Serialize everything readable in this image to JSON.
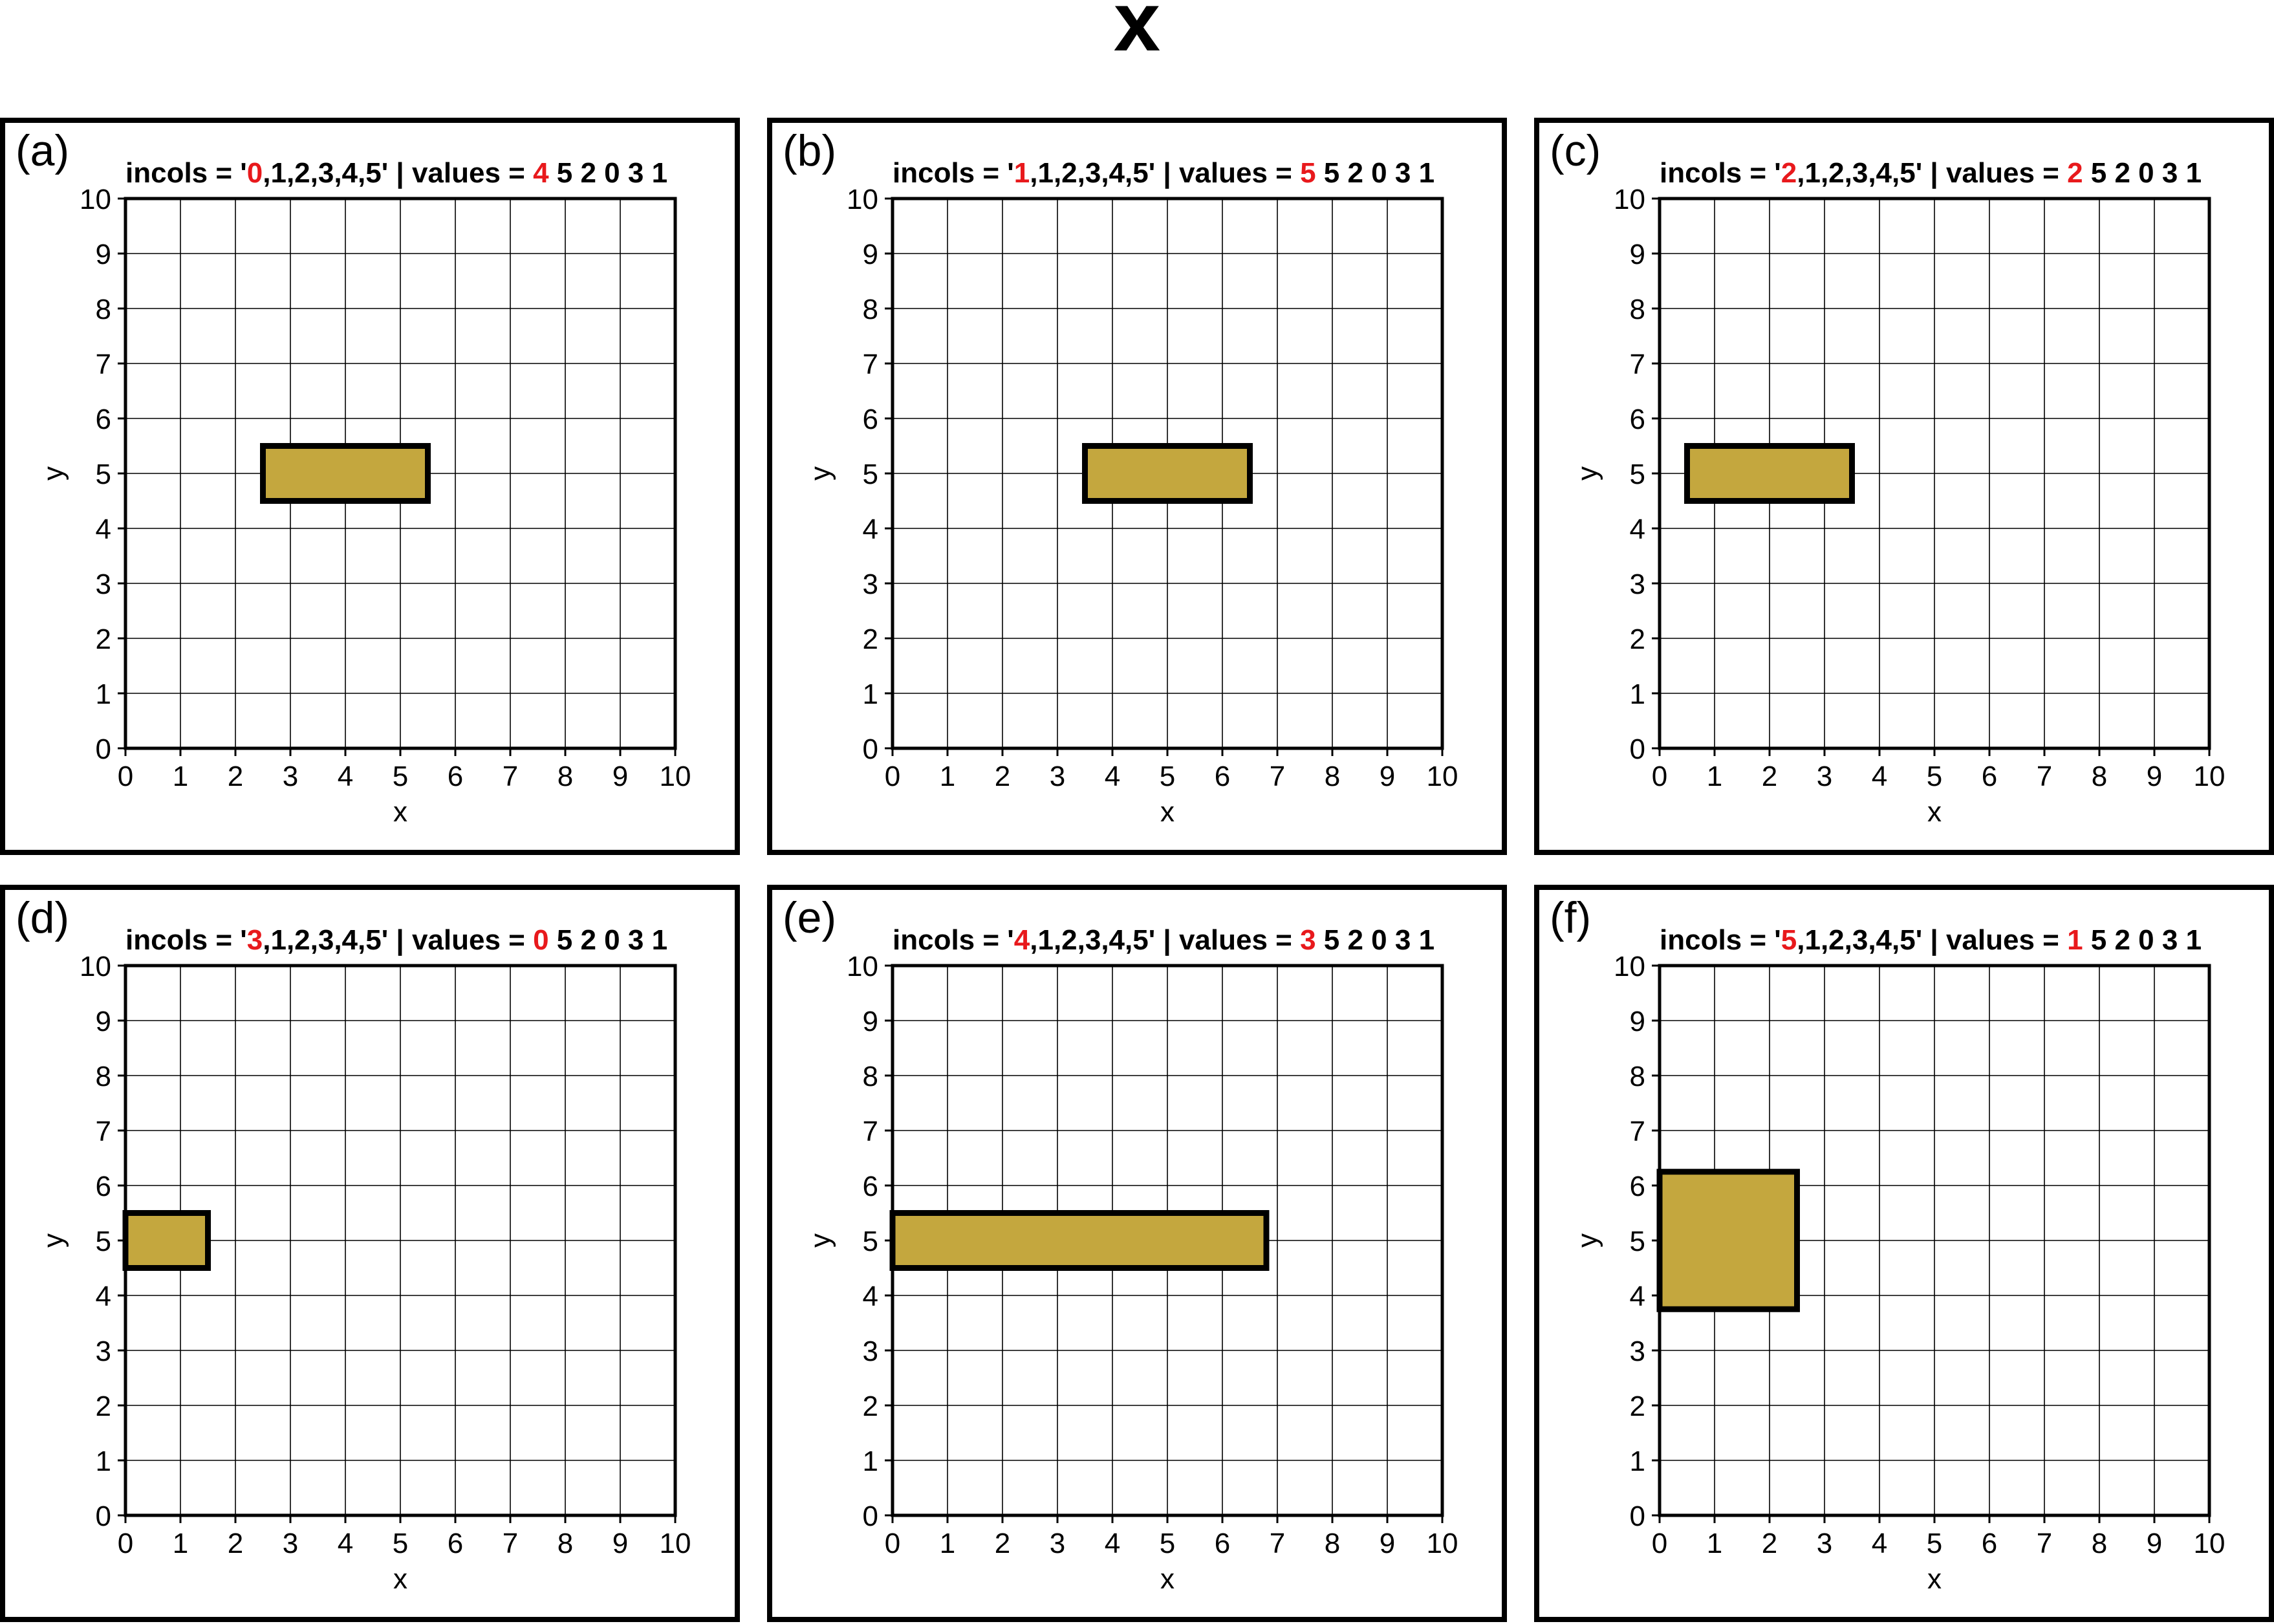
{
  "title": "x",
  "colors": {
    "fill": "#c4a73e",
    "edge": "#000000",
    "highlight": "#e8191c",
    "grid": "#000000",
    "text": "#000000",
    "background": "#ffffff"
  },
  "chart_data": [
    {
      "type": "bar",
      "orientation": "horizontal",
      "panel_label": "(a)",
      "title_parts": [
        {
          "text": "incols = '",
          "highlight": false
        },
        {
          "text": "0",
          "highlight": true
        },
        {
          "text": ",1,2,3,4,5' | values = ",
          "highlight": false
        },
        {
          "text": "4",
          "highlight": true
        },
        {
          "text": " 5 2 0 3 1",
          "highlight": false
        }
      ],
      "xlabel": "x",
      "ylabel": "y",
      "xlim": [
        0,
        10
      ],
      "ylim": [
        0,
        10
      ],
      "xticks": [
        "0",
        "1",
        "2",
        "3",
        "4",
        "5",
        "6",
        "7",
        "8",
        "9",
        "10"
      ],
      "yticks": [
        "0",
        "1",
        "2",
        "3",
        "4",
        "5",
        "6",
        "7",
        "8",
        "9",
        "10"
      ],
      "grid": true,
      "bars": [
        {
          "x0": 2.5,
          "x1": 5.5,
          "y0": 4.5,
          "y1": 5.5
        }
      ]
    },
    {
      "type": "bar",
      "orientation": "horizontal",
      "panel_label": "(b)",
      "title_parts": [
        {
          "text": "incols = '",
          "highlight": false
        },
        {
          "text": "1",
          "highlight": true
        },
        {
          "text": ",1,2,3,4,5' | values = ",
          "highlight": false
        },
        {
          "text": "5",
          "highlight": true
        },
        {
          "text": " 5 2 0 3 1",
          "highlight": false
        }
      ],
      "xlabel": "x",
      "ylabel": "y",
      "xlim": [
        0,
        10
      ],
      "ylim": [
        0,
        10
      ],
      "xticks": [
        "0",
        "1",
        "2",
        "3",
        "4",
        "5",
        "6",
        "7",
        "8",
        "9",
        "10"
      ],
      "yticks": [
        "0",
        "1",
        "2",
        "3",
        "4",
        "5",
        "6",
        "7",
        "8",
        "9",
        "10"
      ],
      "grid": true,
      "bars": [
        {
          "x0": 3.5,
          "x1": 6.5,
          "y0": 4.5,
          "y1": 5.5
        }
      ]
    },
    {
      "type": "bar",
      "orientation": "horizontal",
      "panel_label": "(c)",
      "title_parts": [
        {
          "text": "incols = '",
          "highlight": false
        },
        {
          "text": "2",
          "highlight": true
        },
        {
          "text": ",1,2,3,4,5' | values = ",
          "highlight": false
        },
        {
          "text": "2",
          "highlight": true
        },
        {
          "text": " 5 2 0 3 1",
          "highlight": false
        }
      ],
      "xlabel": "x",
      "ylabel": "y",
      "xlim": [
        0,
        10
      ],
      "ylim": [
        0,
        10
      ],
      "xticks": [
        "0",
        "1",
        "2",
        "3",
        "4",
        "5",
        "6",
        "7",
        "8",
        "9",
        "10"
      ],
      "yticks": [
        "0",
        "1",
        "2",
        "3",
        "4",
        "5",
        "6",
        "7",
        "8",
        "9",
        "10"
      ],
      "grid": true,
      "bars": [
        {
          "x0": 0.5,
          "x1": 3.5,
          "y0": 4.5,
          "y1": 5.5
        }
      ]
    },
    {
      "type": "bar",
      "orientation": "horizontal",
      "panel_label": "(d)",
      "title_parts": [
        {
          "text": "incols = '",
          "highlight": false
        },
        {
          "text": "3",
          "highlight": true
        },
        {
          "text": ",1,2,3,4,5' | values = ",
          "highlight": false
        },
        {
          "text": "0",
          "highlight": true
        },
        {
          "text": " 5 2 0 3 1",
          "highlight": false
        }
      ],
      "xlabel": "x",
      "ylabel": "y",
      "xlim": [
        0,
        10
      ],
      "ylim": [
        0,
        10
      ],
      "xticks": [
        "0",
        "1",
        "2",
        "3",
        "4",
        "5",
        "6",
        "7",
        "8",
        "9",
        "10"
      ],
      "yticks": [
        "0",
        "1",
        "2",
        "3",
        "4",
        "5",
        "6",
        "7",
        "8",
        "9",
        "10"
      ],
      "grid": true,
      "bars": [
        {
          "x0": 0,
          "x1": 1.5,
          "y0": 4.5,
          "y1": 5.5
        }
      ]
    },
    {
      "type": "bar",
      "orientation": "horizontal",
      "panel_label": "(e)",
      "title_parts": [
        {
          "text": "incols = '",
          "highlight": false
        },
        {
          "text": "4",
          "highlight": true
        },
        {
          "text": ",1,2,3,4,5' | values = ",
          "highlight": false
        },
        {
          "text": "3",
          "highlight": true
        },
        {
          "text": " 5 2 0 3 1",
          "highlight": false
        }
      ],
      "xlabel": "x",
      "ylabel": "y",
      "xlim": [
        0,
        10
      ],
      "ylim": [
        0,
        10
      ],
      "xticks": [
        "0",
        "1",
        "2",
        "3",
        "4",
        "5",
        "6",
        "7",
        "8",
        "9",
        "10"
      ],
      "yticks": [
        "0",
        "1",
        "2",
        "3",
        "4",
        "5",
        "6",
        "7",
        "8",
        "9",
        "10"
      ],
      "grid": true,
      "bars": [
        {
          "x0": 0,
          "x1": 6.8,
          "y0": 4.5,
          "y1": 5.5
        }
      ]
    },
    {
      "type": "bar",
      "orientation": "horizontal",
      "panel_label": "(f)",
      "title_parts": [
        {
          "text": "incols = '",
          "highlight": false
        },
        {
          "text": "5",
          "highlight": true
        },
        {
          "text": ",1,2,3,4,5' | values = ",
          "highlight": false
        },
        {
          "text": "1",
          "highlight": true
        },
        {
          "text": " 5 2 0 3 1",
          "highlight": false
        }
      ],
      "xlabel": "x",
      "ylabel": "y",
      "xlim": [
        0,
        10
      ],
      "ylim": [
        0,
        10
      ],
      "xticks": [
        "0",
        "1",
        "2",
        "3",
        "4",
        "5",
        "6",
        "7",
        "8",
        "9",
        "10"
      ],
      "yticks": [
        "0",
        "1",
        "2",
        "3",
        "4",
        "5",
        "6",
        "7",
        "8",
        "9",
        "10"
      ],
      "grid": true,
      "bars": [
        {
          "x0": 0,
          "x1": 2.5,
          "y0": 3.75,
          "y1": 6.25
        }
      ]
    }
  ]
}
